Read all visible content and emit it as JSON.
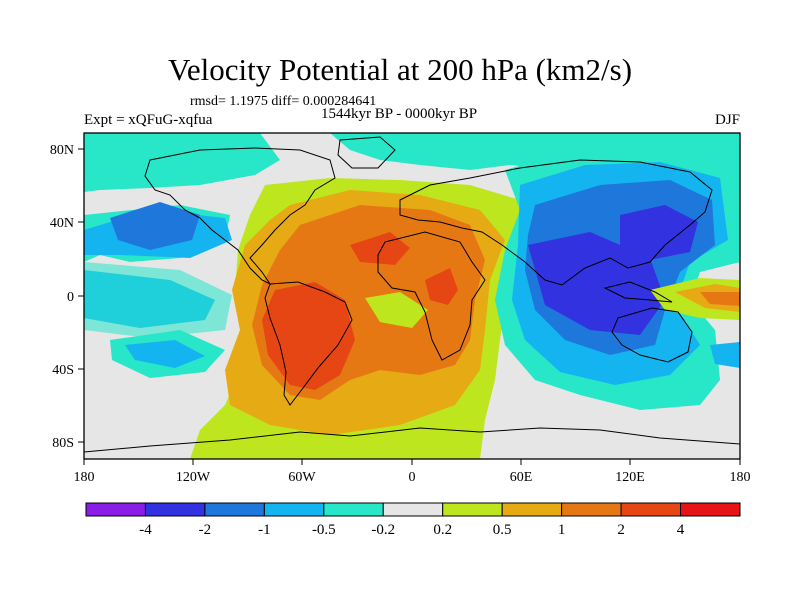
{
  "title": "Velocity Potential at 200 hPa (km2/s)",
  "stats": "rmsd= 1.1975 diff= 0.000284641",
  "period": "1544kyr BP - 0000kyr BP",
  "experiment": "Expt = xQFuG-xqfua",
  "season": "DJF",
  "axes": {
    "lat_ticks": [
      "80N",
      "40N",
      "0",
      "40S",
      "80S"
    ],
    "lon_ticks": [
      "180",
      "120W",
      "60W",
      "0",
      "60E",
      "120E",
      "180"
    ]
  },
  "colorbar": {
    "colors": [
      "#8a1ee6",
      "#3232e0",
      "#1e78dc",
      "#14b4f0",
      "#28e6c8",
      "#e6e6e6",
      "#bee61e",
      "#e6aa14",
      "#e67814",
      "#e64614",
      "#e61414"
    ],
    "labels": [
      "-4",
      "-2",
      "-1",
      "-0.5",
      "-0.2",
      "0.2",
      "0.5",
      "1",
      "2",
      "4"
    ]
  },
  "map_colors": {
    "neutral": "#e6e6e6",
    "light_pos": "#bee61e",
    "mid_pos": "#e6aa14",
    "strong_pos": "#e67814",
    "vstrong_pos": "#e64614",
    "light_neg": "#28e6c8",
    "mid_neg": "#14b4f0",
    "strong_neg": "#1e78dc",
    "vstrong_neg": "#3232e0"
  }
}
